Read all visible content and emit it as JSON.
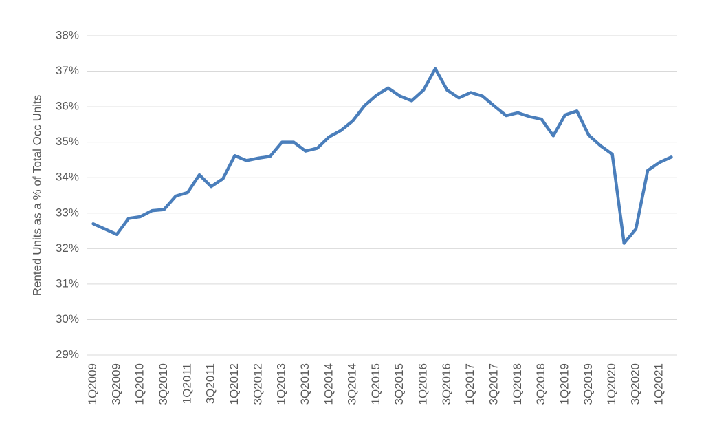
{
  "chart_data": {
    "type": "line",
    "y_label": "Rented Units as a % of Total Occ Units",
    "categories": [
      "1Q2009",
      null,
      "3Q2009",
      null,
      "1Q2010",
      null,
      "3Q2010",
      null,
      "1Q2011",
      null,
      "3Q2011",
      null,
      "1Q2012",
      null,
      "3Q2012",
      null,
      "1Q2013",
      null,
      "3Q2013",
      null,
      "1Q2014",
      null,
      "3Q2014",
      null,
      "1Q2015",
      null,
      "3Q2015",
      null,
      "1Q2016",
      null,
      "3Q2016",
      null,
      "1Q2017",
      null,
      "3Q2017",
      null,
      "1Q2018",
      null,
      "3Q2018",
      null,
      "1Q2019",
      null,
      "3Q2019",
      null,
      "1Q2020",
      null,
      "3Q2020",
      null,
      "1Q2021",
      null
    ],
    "series": [
      {
        "color": "#4a7ebb",
        "values": [
          32.7,
          32.55,
          32.4,
          32.85,
          32.9,
          33.07,
          33.1,
          33.48,
          33.58,
          34.08,
          33.75,
          33.97,
          34.62,
          34.48,
          34.55,
          34.6,
          35.0,
          35.0,
          34.75,
          34.83,
          35.15,
          35.33,
          35.6,
          36.03,
          36.32,
          36.53,
          36.3,
          36.17,
          36.47,
          37.07,
          36.47,
          36.25,
          36.4,
          36.3,
          36.02,
          35.75,
          35.83,
          35.72,
          35.65,
          35.18,
          35.77,
          35.88,
          35.2,
          34.9,
          34.66,
          32.15,
          32.55,
          34.2,
          34.43,
          34.58
        ]
      }
    ],
    "ylim": [
      29,
      38
    ],
    "yticks": [
      {
        "value": 29,
        "label": "29%"
      },
      {
        "value": 30,
        "label": "30%"
      },
      {
        "value": 31,
        "label": "31%"
      },
      {
        "value": 32,
        "label": "32%"
      },
      {
        "value": 33,
        "label": "33%"
      },
      {
        "value": 34,
        "label": "34%"
      },
      {
        "value": 35,
        "label": "35%"
      },
      {
        "value": 36,
        "label": "36%"
      },
      {
        "value": 37,
        "label": "37%"
      },
      {
        "value": 38,
        "label": "38%"
      }
    ],
    "grid": true
  }
}
